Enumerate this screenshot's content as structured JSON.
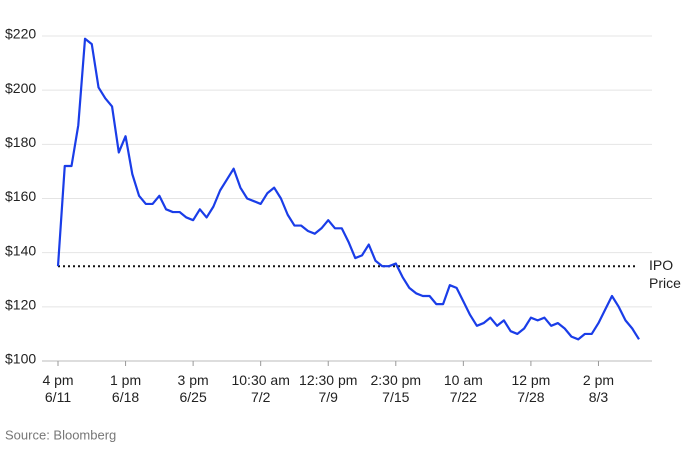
{
  "chart_data": {
    "type": "line",
    "series": [
      {
        "name": "Price",
        "color": "#1a3de8",
        "values": [
          135,
          172,
          172,
          187,
          219,
          217,
          201,
          197,
          194,
          177,
          183,
          169,
          161,
          158,
          158,
          161,
          156,
          155,
          155,
          153,
          152,
          156,
          153,
          157,
          163,
          167,
          171,
          164,
          160,
          159,
          158,
          162,
          164,
          160,
          154,
          150,
          150,
          148,
          147,
          149,
          152,
          149,
          149,
          144,
          138,
          139,
          143,
          137,
          135,
          135,
          136,
          131,
          127,
          125,
          124,
          124,
          121,
          121,
          128,
          127,
          122,
          117,
          113,
          114,
          116,
          113,
          115,
          111,
          110,
          112,
          116,
          115,
          116,
          113,
          114,
          112,
          109,
          108,
          110,
          110,
          114,
          119,
          124,
          120,
          115,
          112,
          108
        ]
      }
    ],
    "xlim": [
      0,
      86
    ],
    "xticks": [
      {
        "value": 0,
        "label": "4 pm 6/11"
      },
      {
        "value": 10,
        "label": "1 pm 6/18"
      },
      {
        "value": 20,
        "label": "3 pm 6/25"
      },
      {
        "value": 30,
        "label": "10:30 am 7/2"
      },
      {
        "value": 40,
        "label": "12:30 pm 7/9"
      },
      {
        "value": 50,
        "label": "2:30 pm 7/15"
      },
      {
        "value": 60,
        "label": "10 am 7/22"
      },
      {
        "value": 70,
        "label": "12 pm 7/28"
      },
      {
        "value": 80,
        "label": "2 pm 8/3"
      }
    ],
    "ylim": [
      100,
      220
    ],
    "yticks": [
      {
        "value": 100,
        "label": "$100"
      },
      {
        "value": 120,
        "label": "$120"
      },
      {
        "value": 140,
        "label": "$140"
      },
      {
        "value": 160,
        "label": "$160"
      },
      {
        "value": 180,
        "label": "$180"
      },
      {
        "value": 200,
        "label": "$200"
      },
      {
        "value": 220,
        "label": "$220"
      }
    ],
    "grid": true,
    "reference_line": {
      "value": 135,
      "label": "IPO Price"
    },
    "source": "Source: Bloomberg"
  }
}
